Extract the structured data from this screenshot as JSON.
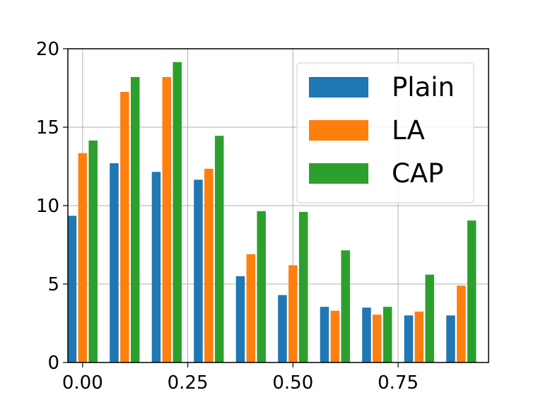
{
  "chart_data": {
    "type": "bar",
    "title": "",
    "xlabel": "",
    "ylabel": "",
    "xlim": [
      -0.035,
      0.965
    ],
    "ylim": [
      0,
      20
    ],
    "grid": true,
    "legend_position": "top-right",
    "x_ticks": [
      {
        "value": 0.0,
        "label": "0.00"
      },
      {
        "value": 0.25,
        "label": "0.25"
      },
      {
        "value": 0.5,
        "label": "0.50"
      },
      {
        "value": 0.75,
        "label": "0.75"
      }
    ],
    "y_ticks": [
      {
        "value": 0,
        "label": "0"
      },
      {
        "value": 5,
        "label": "5"
      },
      {
        "value": 10,
        "label": "10"
      },
      {
        "value": 15,
        "label": "15"
      },
      {
        "value": 20,
        "label": "20"
      }
    ],
    "x": [
      0.0,
      0.1,
      0.2,
      0.3,
      0.4,
      0.5,
      0.6,
      0.7,
      0.8,
      0.9
    ],
    "bar_offset": 0.025,
    "bar_width": 0.021,
    "series": [
      {
        "name": "Plain",
        "color": "#1f77b4",
        "values": [
          9.35,
          12.7,
          12.15,
          11.65,
          5.5,
          4.3,
          3.55,
          3.5,
          3.0,
          3.0
        ]
      },
      {
        "name": "LA",
        "color": "#ff7f0e",
        "values": [
          13.35,
          17.25,
          18.2,
          12.35,
          6.9,
          6.2,
          3.3,
          3.05,
          3.25,
          4.9
        ]
      },
      {
        "name": "CAP",
        "color": "#2ca02c",
        "values": [
          14.15,
          18.2,
          19.15,
          14.45,
          9.65,
          9.6,
          7.15,
          3.55,
          5.6,
          9.05
        ]
      }
    ]
  }
}
